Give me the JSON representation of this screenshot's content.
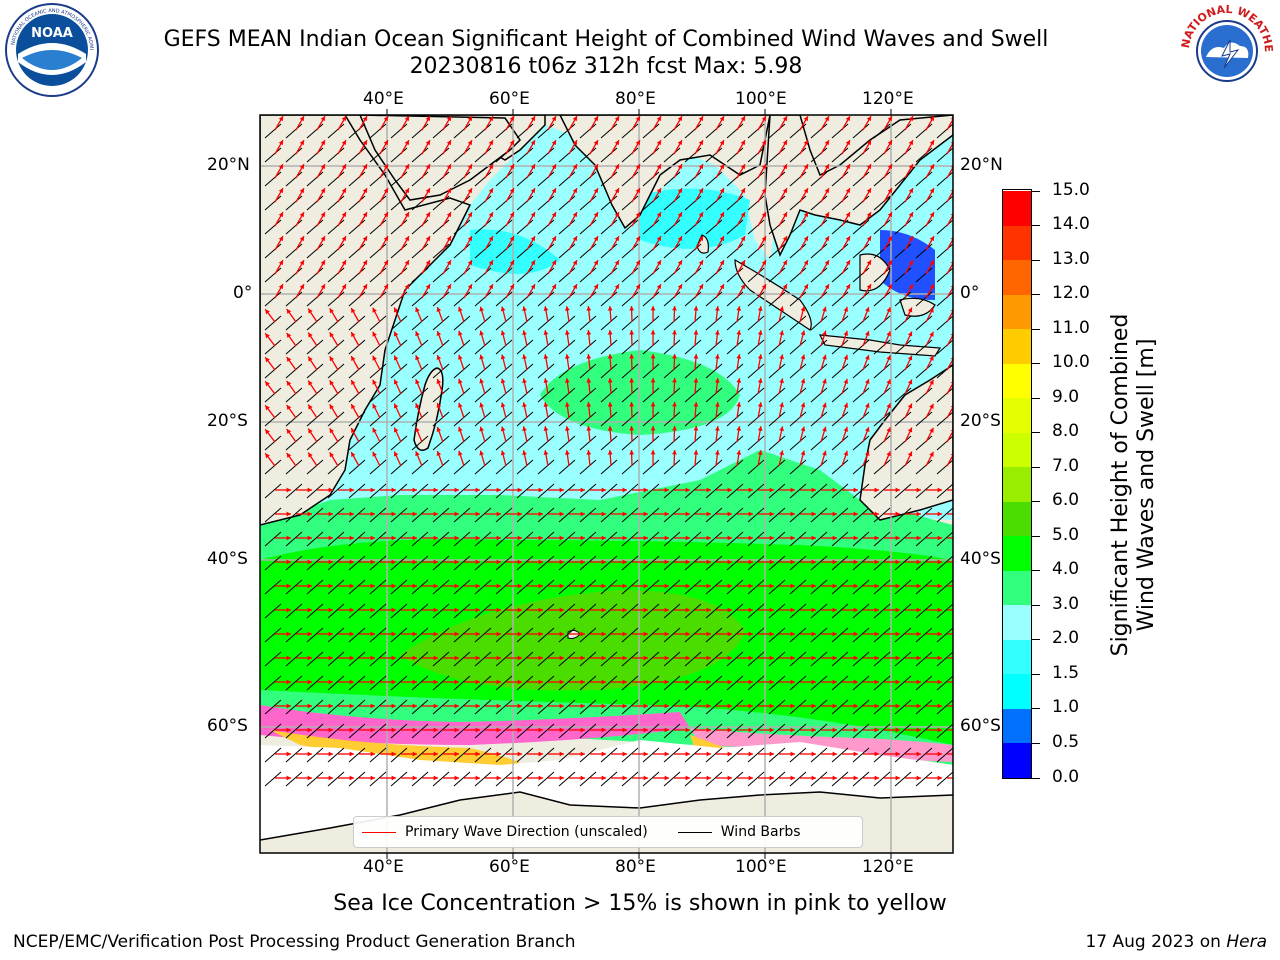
{
  "header": {
    "title_line1": "GEFS MEAN Indian Ocean Significant Height of Combined Wind Waves and Swell",
    "title_line2": "20230816 t06z 312h fcst   Max: 5.98"
  },
  "logos": {
    "left": {
      "name": "noaa-logo",
      "text": "NOAA"
    },
    "right": {
      "name": "nws-logo",
      "text": "NATIONAL WEATHER SERVICE"
    }
  },
  "map": {
    "lon_ticks_top": [
      "40°E",
      "60°E",
      "80°E",
      "100°E",
      "120°E"
    ],
    "lon_ticks_bottom": [
      "40°E",
      "60°E",
      "80°E",
      "100°E",
      "120°E"
    ],
    "lat_ticks_left": [
      "20°N",
      "0°",
      "20°S",
      "40°S",
      "60°S"
    ],
    "lat_ticks_right": [
      "20°N",
      "0°",
      "20°S",
      "40°S",
      "60°S"
    ],
    "legend": {
      "wave_label": "Primary Wave Direction (unscaled)",
      "wave_color": "#ff0000",
      "wind_label": "Wind Barbs",
      "wind_color": "#000000"
    }
  },
  "colorbar": {
    "label": "Significant Height of Combined\nWind Waves and Swell [m]",
    "label_line1": "Significant Height of Combined",
    "label_line2": "Wind Waves and Swell [m]",
    "ticks": [
      "0.0",
      "0.5",
      "1.0",
      "1.5",
      "2.0",
      "3.0",
      "4.0",
      "5.0",
      "6.0",
      "7.0",
      "8.0",
      "9.0",
      "10.0",
      "11.0",
      "12.0",
      "13.0",
      "14.0",
      "15.0"
    ],
    "colors": [
      "#0000ff",
      "#0070ff",
      "#00ffff",
      "#33ffff",
      "#99ffff",
      "#33ff7f",
      "#00ff00",
      "#4cdd00",
      "#99ee00",
      "#ccff00",
      "#e6ff00",
      "#ffff00",
      "#ffcc00",
      "#ff9900",
      "#ff6600",
      "#ff3300",
      "#ff0000"
    ]
  },
  "note": "Sea Ice Concentration > 15% is shown in pink to yellow",
  "footer": {
    "left": "NCEP/EMC/Verification Post Processing Product Generation Branch",
    "right_prefix": "17 Aug 2023 on ",
    "right_host": "Hera"
  }
}
